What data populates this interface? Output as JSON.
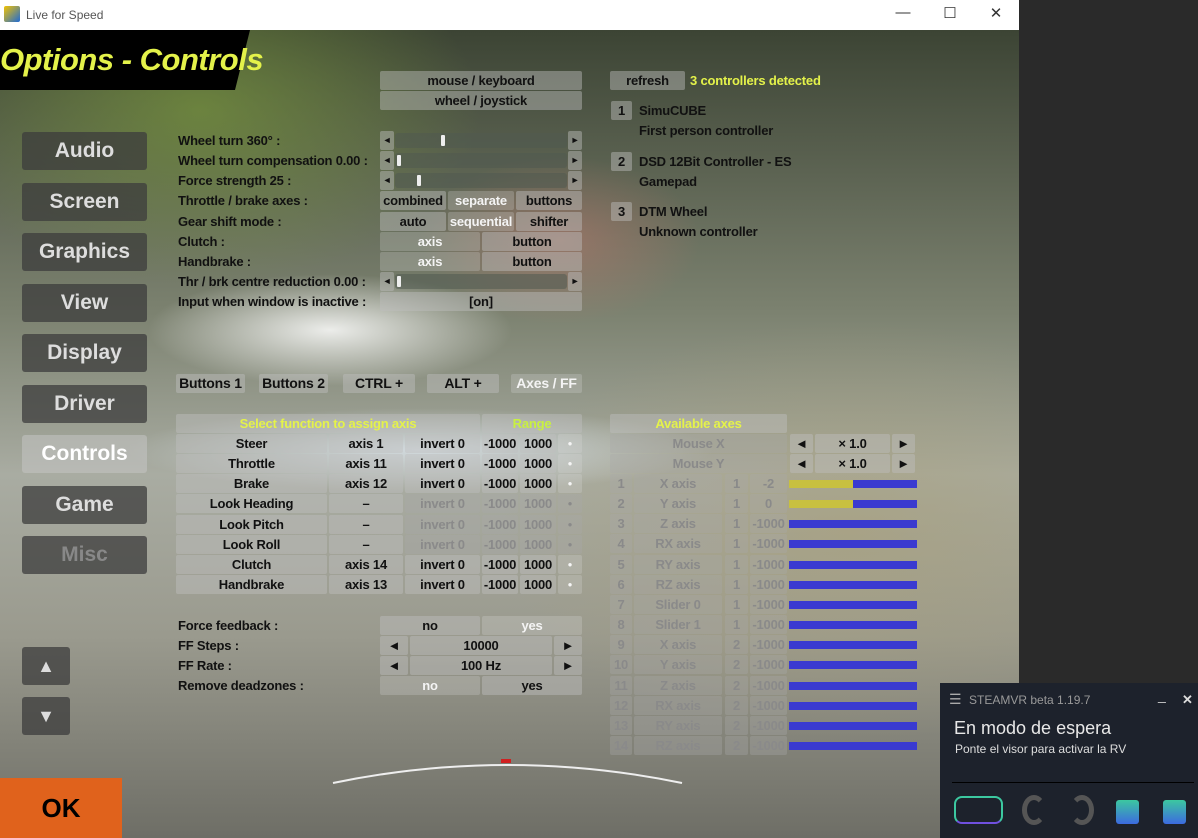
{
  "window": {
    "title": "Live for Speed",
    "minimize": "—",
    "maximize": "☐",
    "close": "✕"
  },
  "header": {
    "title": "Options - Controls"
  },
  "nav": [
    {
      "label": "Audio"
    },
    {
      "label": "Screen"
    },
    {
      "label": "Graphics"
    },
    {
      "label": "View"
    },
    {
      "label": "Display"
    },
    {
      "label": "Driver"
    },
    {
      "label": "Controls",
      "selected": true
    },
    {
      "label": "Game"
    },
    {
      "label": "Misc",
      "disabled": true
    }
  ],
  "nav_arrows": {
    "up": "▲",
    "down": "▼"
  },
  "ok_label": "OK",
  "input_mode": {
    "options": [
      "mouse / keyboard",
      "wheel / joystick"
    ]
  },
  "controllers": {
    "refresh_label": "refresh",
    "status": "3 controllers detected",
    "list": [
      {
        "num": "1",
        "name": "SimuCUBE",
        "type": "First person controller"
      },
      {
        "num": "2",
        "name": "DSD 12Bit Controller - ES",
        "type": "Gamepad"
      },
      {
        "num": "3",
        "name": "DTM Wheel",
        "type": "Unknown controller"
      }
    ]
  },
  "settings": [
    {
      "label": "Wheel turn 360° :",
      "kind": "slider",
      "value": 0.27
    },
    {
      "label": "Wheel turn compensation 0.00 :",
      "kind": "slider",
      "value": 0.0
    },
    {
      "label": "Force strength 25 :",
      "kind": "slider",
      "value": 0.12
    },
    {
      "label": "Throttle / brake axes :",
      "kind": "options",
      "options": [
        "combined",
        "separate",
        "buttons"
      ],
      "selected": 1
    },
    {
      "label": "Gear shift mode :",
      "kind": "options",
      "options": [
        "auto",
        "sequential",
        "shifter"
      ],
      "selected": 1
    },
    {
      "label": "Clutch :",
      "kind": "options",
      "options": [
        "axis",
        "button"
      ],
      "selected": 0
    },
    {
      "label": "Handbrake :",
      "kind": "options",
      "options": [
        "axis",
        "button"
      ],
      "selected": 0
    },
    {
      "label": "Thr / brk centre reduction 0.00 :",
      "kind": "slider",
      "value": 0.0
    },
    {
      "label": "Input when window is inactive :",
      "kind": "options",
      "options": [
        "[on]"
      ],
      "selected": -1
    }
  ],
  "slider_arrows": {
    "left": "◄",
    "right": "►"
  },
  "tabs": [
    {
      "label": "Buttons 1"
    },
    {
      "label": "Buttons 2"
    },
    {
      "label": "CTRL +"
    },
    {
      "label": "ALT +"
    },
    {
      "label": "Axes / FF",
      "selected": true
    }
  ],
  "functions": {
    "header": "Select function to assign axis",
    "range_header": "Range",
    "dot": "●",
    "rows": [
      {
        "name": "Steer",
        "axis": "axis 1",
        "invert": "invert 0",
        "min": "-1000",
        "max": "1000",
        "active": true
      },
      {
        "name": "Throttle",
        "axis": "axis 11",
        "invert": "invert 0",
        "min": "-1000",
        "max": "1000",
        "active": true
      },
      {
        "name": "Brake",
        "axis": "axis 12",
        "invert": "invert 0",
        "min": "-1000",
        "max": "1000",
        "active": true
      },
      {
        "name": "Look Heading",
        "axis": "–",
        "invert": "invert 0",
        "min": "-1000",
        "max": "1000",
        "active": false
      },
      {
        "name": "Look Pitch",
        "axis": "–",
        "invert": "invert 0",
        "min": "-1000",
        "max": "1000",
        "active": false
      },
      {
        "name": "Look Roll",
        "axis": "–",
        "invert": "invert 0",
        "min": "-1000",
        "max": "1000",
        "active": false
      },
      {
        "name": "Clutch",
        "axis": "axis 14",
        "invert": "invert 0",
        "min": "-1000",
        "max": "1000",
        "active": true
      },
      {
        "name": "Handbrake",
        "axis": "axis 13",
        "invert": "invert 0",
        "min": "-1000",
        "max": "1000",
        "active": true
      }
    ]
  },
  "ff": [
    {
      "label": "Force feedback :",
      "kind": "options",
      "options": [
        "no",
        "yes"
      ],
      "selected": 1
    },
    {
      "label": "FF Steps :",
      "kind": "stepper",
      "value": "10000"
    },
    {
      "label": "FF Rate :",
      "kind": "stepper",
      "value": "100 Hz"
    },
    {
      "label": "Remove deadzones :",
      "kind": "options",
      "options": [
        "no",
        "yes"
      ],
      "selected": 0
    }
  ],
  "axes": {
    "header": "Available axes",
    "mouse": [
      {
        "name": "Mouse X",
        "scale": "× 1.0"
      },
      {
        "name": "Mouse Y",
        "scale": "× 1.0"
      }
    ],
    "rows": [
      {
        "num": "1",
        "name": "X axis",
        "dev": "1",
        "value": "-2",
        "level": 0.5
      },
      {
        "num": "2",
        "name": "Y axis",
        "dev": "1",
        "value": "0",
        "level": 0.5
      },
      {
        "num": "3",
        "name": "Z axis",
        "dev": "1",
        "value": "-1000",
        "level": 0
      },
      {
        "num": "4",
        "name": "RX axis",
        "dev": "1",
        "value": "-1000",
        "level": 0
      },
      {
        "num": "5",
        "name": "RY axis",
        "dev": "1",
        "value": "-1000",
        "level": 0
      },
      {
        "num": "6",
        "name": "RZ axis",
        "dev": "1",
        "value": "-1000",
        "level": 0
      },
      {
        "num": "7",
        "name": "Slider 0",
        "dev": "1",
        "value": "-1000",
        "level": 0
      },
      {
        "num": "8",
        "name": "Slider 1",
        "dev": "1",
        "value": "-1000",
        "level": 0
      },
      {
        "num": "9",
        "name": "X axis",
        "dev": "2",
        "value": "-1000",
        "level": 0
      },
      {
        "num": "10",
        "name": "Y axis",
        "dev": "2",
        "value": "-1000",
        "level": 0
      },
      {
        "num": "11",
        "name": "Z axis",
        "dev": "2",
        "value": "-1000",
        "level": 0
      },
      {
        "num": "12",
        "name": "RX axis",
        "dev": "2",
        "value": "-1000",
        "level": 0
      },
      {
        "num": "13",
        "name": "RY axis",
        "dev": "2",
        "value": "-1000",
        "level": 0
      },
      {
        "num": "14",
        "name": "RZ axis",
        "dev": "2",
        "value": "-1000",
        "level": 0
      }
    ]
  },
  "colors": {
    "accent": "#e4f24a",
    "ok": "#e0621c",
    "bar": "#3a3ad0",
    "bar_fill": "#c8c040"
  },
  "steamvr": {
    "title": "STEAMVR beta 1.19.7",
    "status": "En modo de espera",
    "hint": "Ponte el visor para activar la RV",
    "menu": "☰",
    "minimize": "_",
    "close": "✕",
    "devices": [
      "headset-icon",
      "controller-left-icon",
      "controller-right-icon",
      "base-station-icon",
      "base-station-icon"
    ]
  }
}
